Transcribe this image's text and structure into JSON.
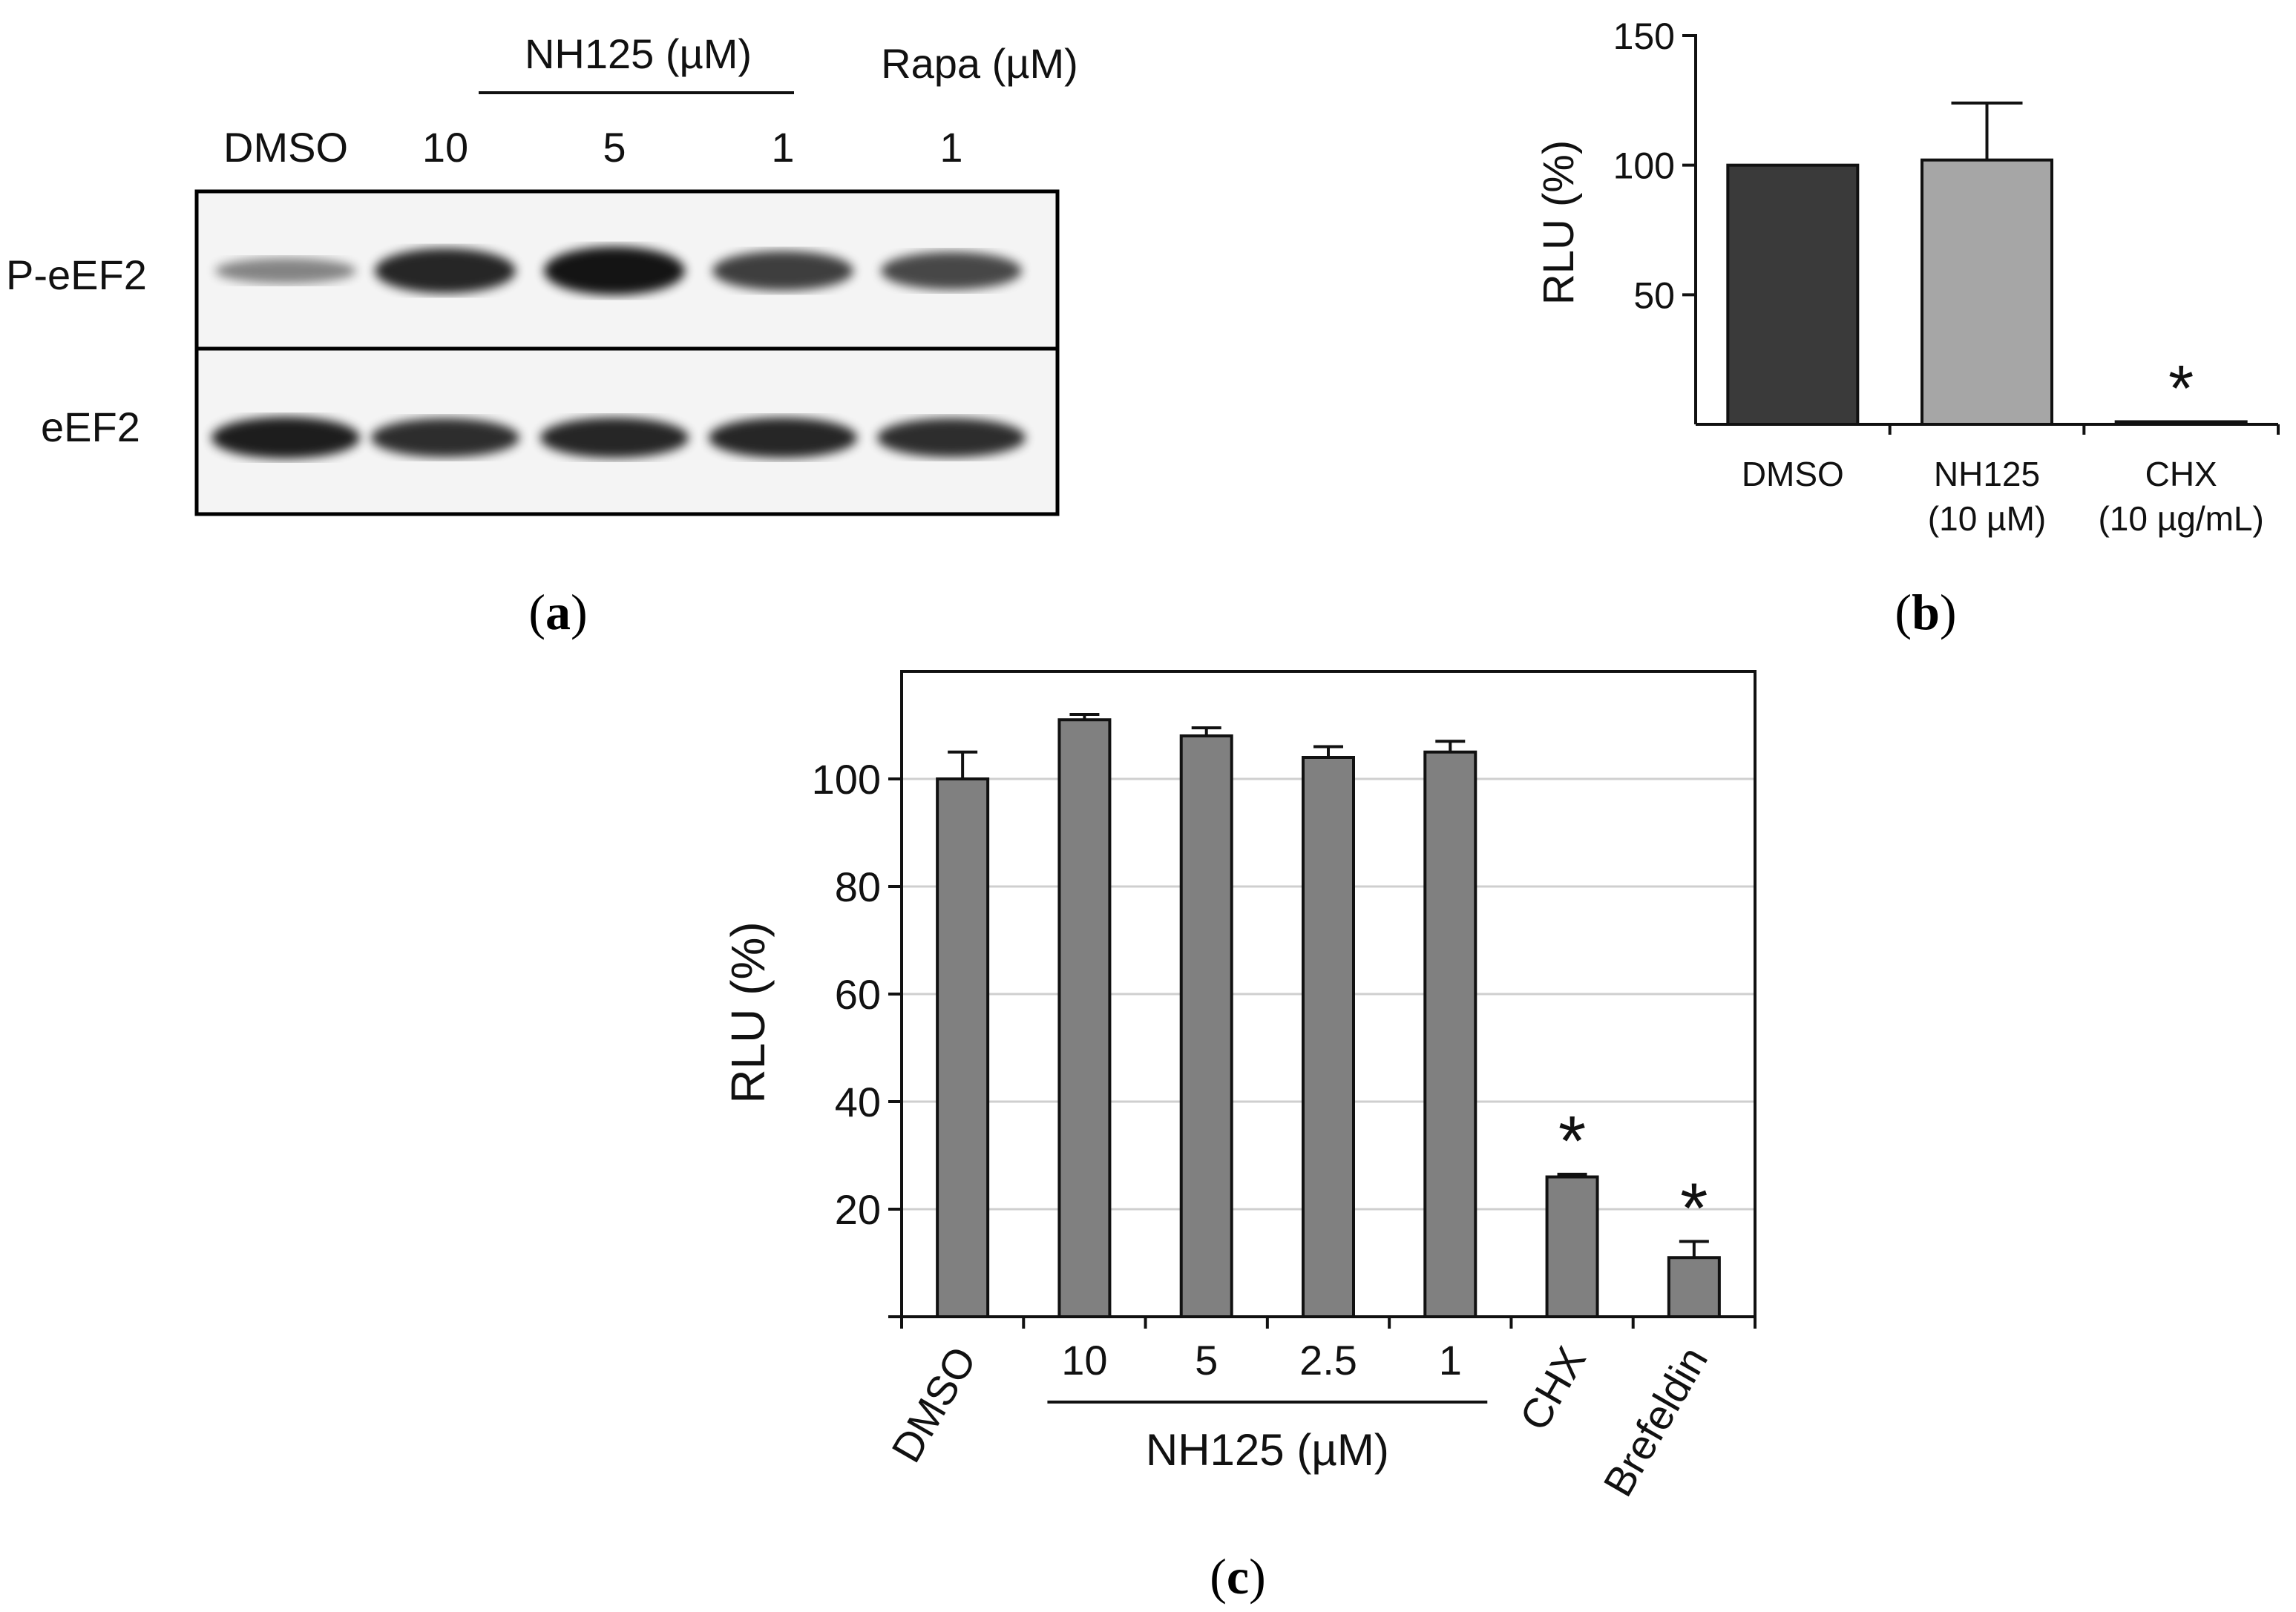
{
  "panel_a": {
    "letter": "a",
    "group_header_nh125": "NH125 (µM)",
    "group_header_rapa": "Rapa (µM)",
    "lanes": [
      "DMSO",
      "10",
      "5",
      "1",
      "1"
    ],
    "rows": [
      "P-eEF2",
      "eEF2"
    ],
    "peef2_intensity": [
      0.3,
      0.85,
      0.95,
      0.7,
      0.65
    ],
    "eef2_intensity": [
      0.9,
      0.8,
      0.85,
      0.85,
      0.8
    ]
  },
  "panel_b": {
    "letter": "b",
    "sig_marker": "*"
  },
  "panel_c": {
    "letter": "c",
    "group_label": "NH125 (µM)",
    "sig_marker": "*"
  },
  "chart_data": [
    {
      "type": "bar",
      "panel": "b",
      "categories": [
        [
          "DMSO"
        ],
        [
          "NH125",
          "(10 µM)"
        ],
        [
          "CHX",
          "(10 µg/mL)"
        ]
      ],
      "values": [
        100,
        102,
        1
      ],
      "errors": [
        0,
        22,
        0
      ],
      "colors": [
        "#3a3a3a",
        "#a6a6a6",
        "#3a3a3a"
      ],
      "significant": [
        false,
        false,
        true
      ],
      "ylabel": "RLU (%)",
      "ylim": [
        0,
        150
      ],
      "yticks": [
        50,
        100,
        150
      ],
      "grid": false
    },
    {
      "type": "bar",
      "panel": "c",
      "categories": [
        "DMSO",
        "10",
        "5",
        "2.5",
        "1",
        "CHX",
        "Brefeldin"
      ],
      "rotated": [
        true,
        false,
        false,
        false,
        false,
        true,
        true
      ],
      "values": [
        100,
        111,
        108,
        104,
        105,
        26,
        11
      ],
      "errors": [
        5,
        1,
        1.5,
        2,
        2,
        0.5,
        3
      ],
      "significant": [
        false,
        false,
        false,
        false,
        false,
        true,
        true
      ],
      "color": "#808080",
      "ylabel": "RLU (%)",
      "ylim": [
        0,
        120
      ],
      "yticks": [
        20,
        40,
        60,
        80,
        100
      ],
      "grid": true
    }
  ]
}
